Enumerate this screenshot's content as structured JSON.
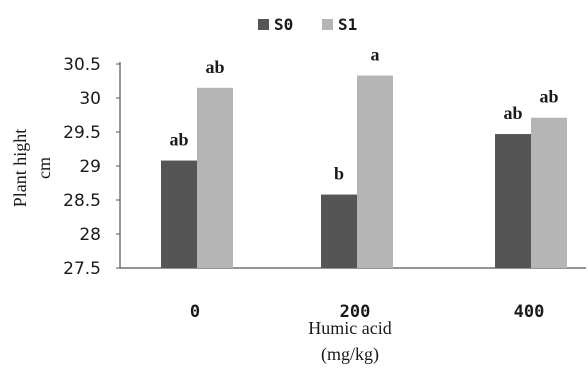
{
  "chart_data": {
    "type": "bar",
    "categories": [
      "0",
      "200",
      "400"
    ],
    "series": [
      {
        "name": "S0",
        "color": "#555555",
        "values": [
          29.08,
          28.58,
          29.47
        ],
        "annotations": [
          "ab",
          "b",
          "ab"
        ]
      },
      {
        "name": "S1",
        "color": "#b5b5b5",
        "values": [
          30.15,
          30.33,
          29.71
        ],
        "annotations": [
          "ab",
          "a",
          "ab"
        ]
      }
    ],
    "ylim": [
      27.5,
      30.5
    ],
    "yticks": [
      "27.5",
      "28",
      "28.5",
      "29",
      "29.5",
      "30",
      "30.5"
    ],
    "ylabel_lines": [
      "Plant hight",
      "cm"
    ],
    "xlabel_lines": [
      "Humic acid",
      "(mg/kg)"
    ],
    "legend_position": "top-center",
    "grid": false
  }
}
